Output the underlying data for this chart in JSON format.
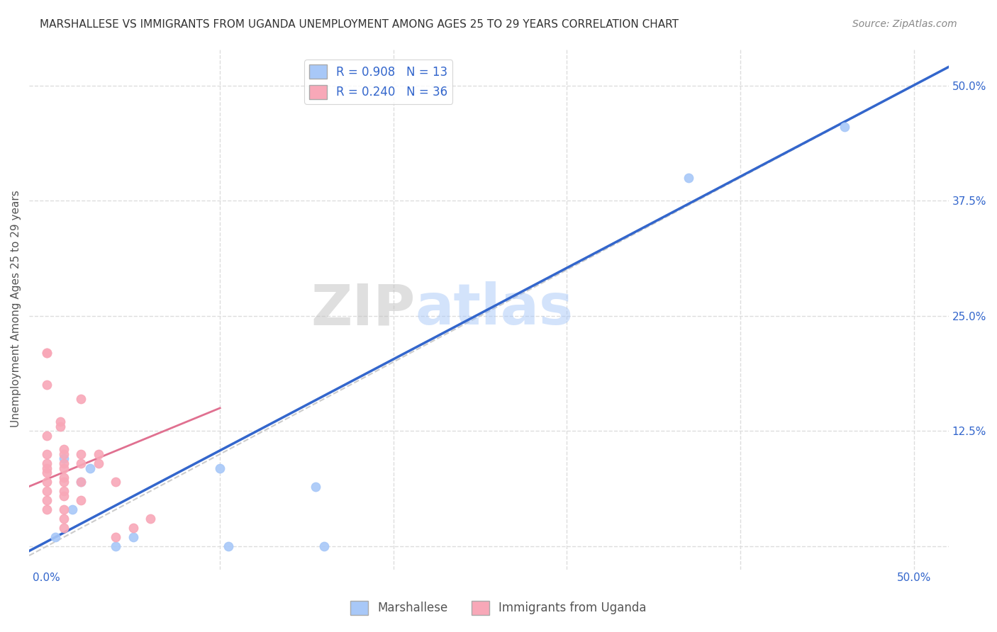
{
  "title": "MARSHALLESE VS IMMIGRANTS FROM UGANDA UNEMPLOYMENT AMONG AGES 25 TO 29 YEARS CORRELATION CHART",
  "source": "Source: ZipAtlas.com",
  "xlabel": "",
  "ylabel": "Unemployment Among Ages 25 to 29 years",
  "xlim": [
    -0.01,
    0.52
  ],
  "ylim": [
    -0.025,
    0.54
  ],
  "xticks": [
    0.0,
    0.1,
    0.2,
    0.3,
    0.4,
    0.5
  ],
  "xticklabels": [
    "0.0%",
    "",
    "",
    "",
    "",
    "50.0%"
  ],
  "yticks": [
    0.0,
    0.125,
    0.25,
    0.375,
    0.5
  ],
  "yticklabels": [
    "",
    "12.5%",
    "25.0%",
    "37.5%",
    "50.0%"
  ],
  "blue_R": 0.908,
  "blue_N": 13,
  "pink_R": 0.24,
  "pink_N": 36,
  "blue_color": "#a8c8f8",
  "pink_color": "#f8a8b8",
  "blue_line_color": "#3366cc",
  "pink_line_color": "#e07090",
  "diagonal_color": "#cccccc",
  "legend_label_blue": "Marshallese",
  "legend_label_pink": "Immigrants from Uganda",
  "watermark_zip": "ZIP",
  "watermark_atlas": "atlas",
  "blue_scatter_x": [
    0.005,
    0.01,
    0.015,
    0.02,
    0.025,
    0.04,
    0.05,
    0.1,
    0.105,
    0.155,
    0.16,
    0.37,
    0.46
  ],
  "blue_scatter_y": [
    0.01,
    0.095,
    0.04,
    0.07,
    0.085,
    0.0,
    0.01,
    0.085,
    0.0,
    0.065,
    0.0,
    0.4,
    0.455
  ],
  "pink_scatter_x": [
    0.0,
    0.0,
    0.0,
    0.0,
    0.0,
    0.0,
    0.0,
    0.0,
    0.0,
    0.0,
    0.0,
    0.0,
    0.008,
    0.008,
    0.01,
    0.01,
    0.01,
    0.01,
    0.01,
    0.01,
    0.01,
    0.01,
    0.01,
    0.01,
    0.01,
    0.02,
    0.02,
    0.02,
    0.02,
    0.02,
    0.03,
    0.03,
    0.04,
    0.04,
    0.05,
    0.06
  ],
  "pink_scatter_y": [
    0.21,
    0.21,
    0.175,
    0.12,
    0.1,
    0.09,
    0.085,
    0.08,
    0.07,
    0.06,
    0.05,
    0.04,
    0.135,
    0.13,
    0.105,
    0.1,
    0.09,
    0.085,
    0.075,
    0.07,
    0.06,
    0.055,
    0.04,
    0.03,
    0.02,
    0.16,
    0.1,
    0.09,
    0.07,
    0.05,
    0.1,
    0.09,
    0.07,
    0.01,
    0.02,
    0.03
  ],
  "blue_line_x": [
    -0.01,
    0.52
  ],
  "blue_line_y": [
    -0.005,
    0.52
  ],
  "pink_line_x": [
    -0.01,
    0.1
  ],
  "pink_line_y": [
    0.065,
    0.15
  ],
  "grid_color": "#dddddd",
  "bg_color": "#ffffff",
  "title_fontsize": 11,
  "axis_fontsize": 11,
  "tick_fontsize": 11,
  "legend_fontsize": 12,
  "source_fontsize": 10,
  "marker_size": 80
}
